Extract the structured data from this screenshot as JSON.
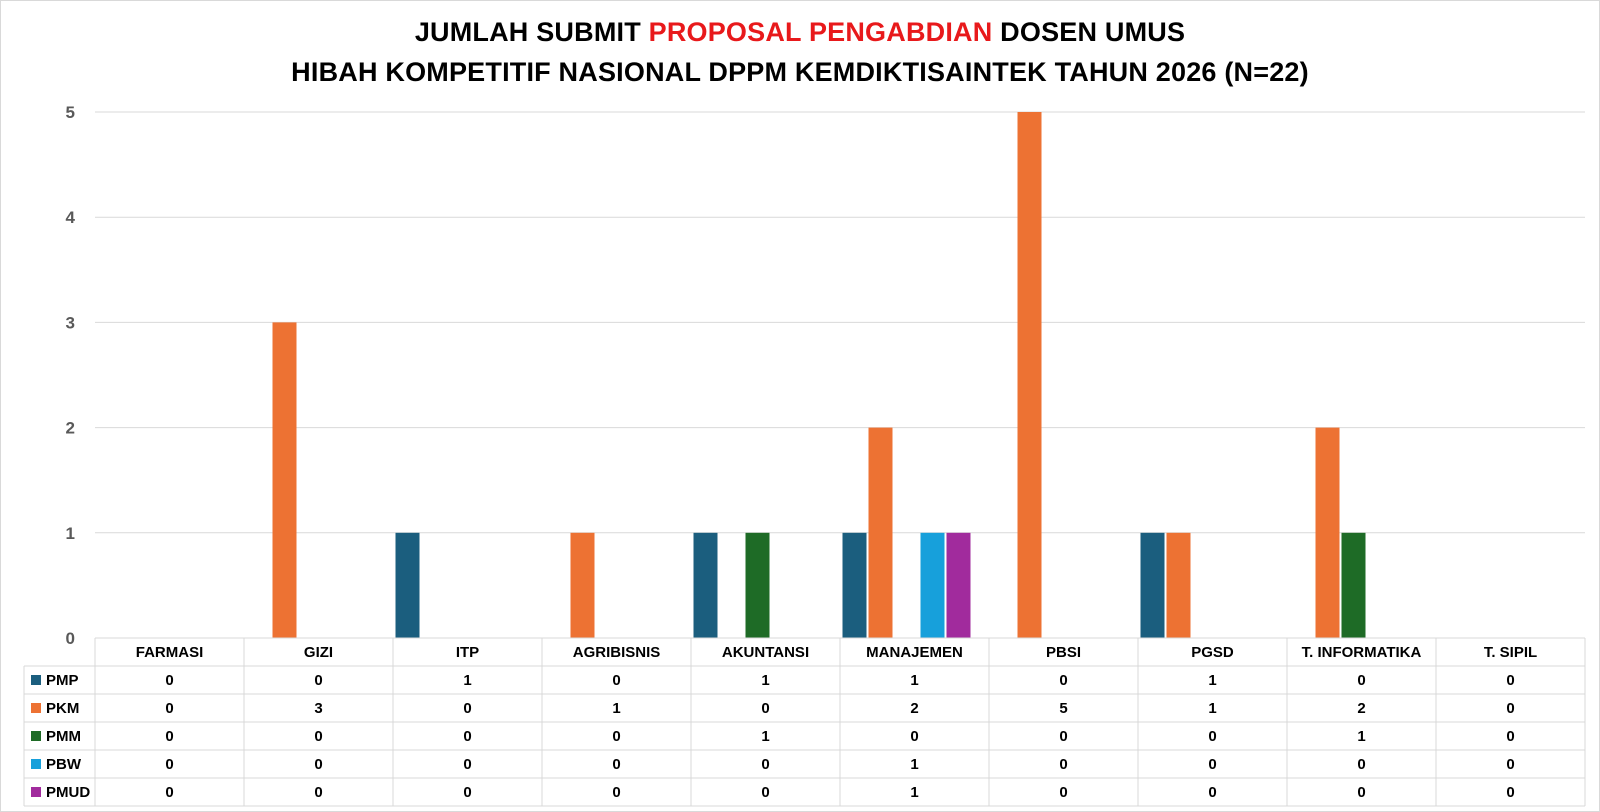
{
  "title": {
    "line1_pre": "JUMLAH SUBMIT ",
    "line1_highlight": "PROPOSAL PENGABDIAN",
    "line1_post": " DOSEN UMUS",
    "line2": "HIBAH KOMPETITIF NASIONAL DPPM KEMDIKTISAINTEK TAHUN 2026 (N=22)",
    "highlight_color": "#e8191b"
  },
  "chart_data": {
    "type": "bar",
    "title": "JUMLAH SUBMIT PROPOSAL PENGABDIAN DOSEN UMUS HIBAH KOMPETITIF NASIONAL DPPM KEMDIKTISAINTEK TAHUN 2026 (N=22)",
    "categories": [
      "FARMASI",
      "GIZI",
      "ITP",
      "AGRIBISNIS",
      "AKUNTANSI",
      "MANAJEMEN",
      "PBSI",
      "PGSD",
      "T. INFORMATIKA",
      "T. SIPIL"
    ],
    "series": [
      {
        "name": "PMP",
        "color": "#1b5e7e",
        "values": [
          0,
          0,
          1,
          0,
          1,
          1,
          0,
          1,
          0,
          0
        ]
      },
      {
        "name": "PKM",
        "color": "#ed7233",
        "values": [
          0,
          3,
          0,
          1,
          0,
          2,
          5,
          1,
          2,
          0
        ]
      },
      {
        "name": "PMM",
        "color": "#1e6b26",
        "values": [
          0,
          0,
          0,
          0,
          1,
          0,
          0,
          0,
          1,
          0
        ]
      },
      {
        "name": "PBW",
        "color": "#17a0db",
        "values": [
          0,
          0,
          0,
          0,
          0,
          1,
          0,
          0,
          0,
          0
        ]
      },
      {
        "name": "PMUD",
        "color": "#a12b9d",
        "values": [
          0,
          0,
          0,
          0,
          0,
          1,
          0,
          0,
          0,
          0
        ]
      }
    ],
    "yticks": [
      "0",
      "1",
      "2",
      "3",
      "4",
      "5"
    ],
    "ylim": [
      0,
      5
    ],
    "grid": true,
    "legend": "data table"
  }
}
